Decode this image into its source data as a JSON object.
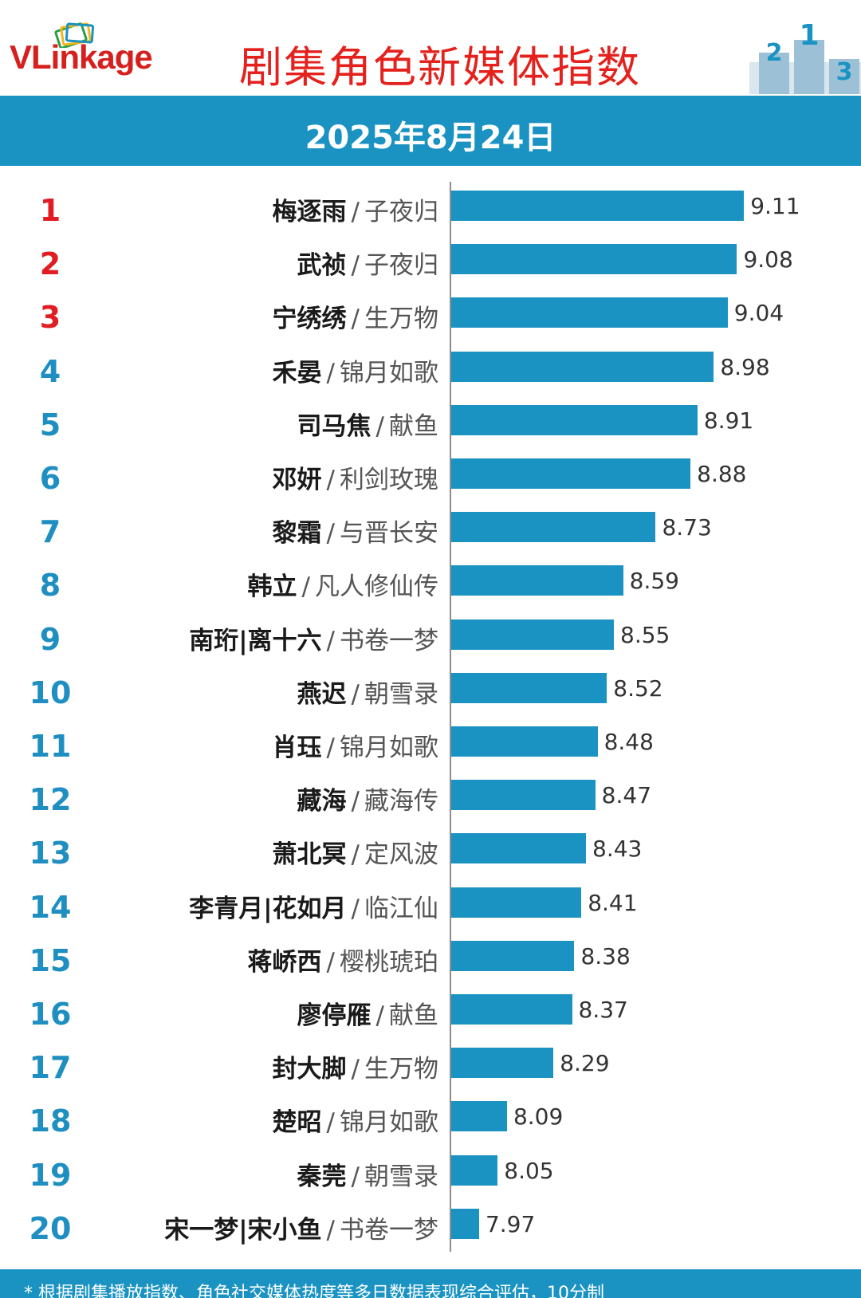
{
  "header": {
    "logo_text": "VLinkage",
    "title": "剧集角色新媒体指数"
  },
  "date": "2025年8月24日",
  "colors": {
    "accent": "#1a93c3",
    "title_red": "#e4211c",
    "top_rank_red": "#e11d23",
    "rank_blue": "#1e8fc0"
  },
  "chart_data": {
    "type": "bar",
    "orientation": "horizontal",
    "title": "剧集角色新媒体指数",
    "subtitle": "2025年8月24日",
    "xlim": [
      7.85,
      9.25
    ],
    "grid": false,
    "rows": [
      {
        "rank": "1",
        "character": "梅逐雨",
        "drama": "子夜归",
        "value": 9.11
      },
      {
        "rank": "2",
        "character": "武祯",
        "drama": "子夜归",
        "value": 9.08
      },
      {
        "rank": "3",
        "character": "宁绣绣",
        "drama": "生万物",
        "value": 9.04
      },
      {
        "rank": "4",
        "character": "禾晏",
        "drama": "锦月如歌",
        "value": 8.98
      },
      {
        "rank": "5",
        "character": "司马焦",
        "drama": "献鱼",
        "value": 8.91
      },
      {
        "rank": "6",
        "character": "邓妍",
        "drama": "利剑玫瑰",
        "value": 8.88
      },
      {
        "rank": "7",
        "character": "黎霜",
        "drama": "与晋长安",
        "value": 8.73
      },
      {
        "rank": "8",
        "character": "韩立",
        "drama": "凡人修仙传",
        "value": 8.59
      },
      {
        "rank": "9",
        "character": "南珩|离十六",
        "drama": "书卷一梦",
        "value": 8.55
      },
      {
        "rank": "10",
        "character": "燕迟",
        "drama": "朝雪录",
        "value": 8.52
      },
      {
        "rank": "11",
        "character": "肖珏",
        "drama": "锦月如歌",
        "value": 8.48
      },
      {
        "rank": "12",
        "character": "藏海",
        "drama": "藏海传",
        "value": 8.47
      },
      {
        "rank": "13",
        "character": "萧北冥",
        "drama": "定风波",
        "value": 8.43
      },
      {
        "rank": "14",
        "character": "李青月|花如月",
        "drama": "临江仙",
        "value": 8.41
      },
      {
        "rank": "15",
        "character": "蒋峤西",
        "drama": "樱桃琥珀",
        "value": 8.38
      },
      {
        "rank": "16",
        "character": "廖停雁",
        "drama": "献鱼",
        "value": 8.37
      },
      {
        "rank": "17",
        "character": "封大脚",
        "drama": "生万物",
        "value": 8.29
      },
      {
        "rank": "18",
        "character": "楚昭",
        "drama": "锦月如歌",
        "value": 8.09
      },
      {
        "rank": "19",
        "character": "秦莞",
        "drama": "朝雪录",
        "value": 8.05
      },
      {
        "rank": "20",
        "character": "宋一梦|宋小鱼",
        "drama": "书卷一梦",
        "value": 7.97
      }
    ]
  },
  "footer": {
    "note": "* 根据剧集播放指数、角色社交媒体热度等多日数据表现综合评估，10分制"
  }
}
